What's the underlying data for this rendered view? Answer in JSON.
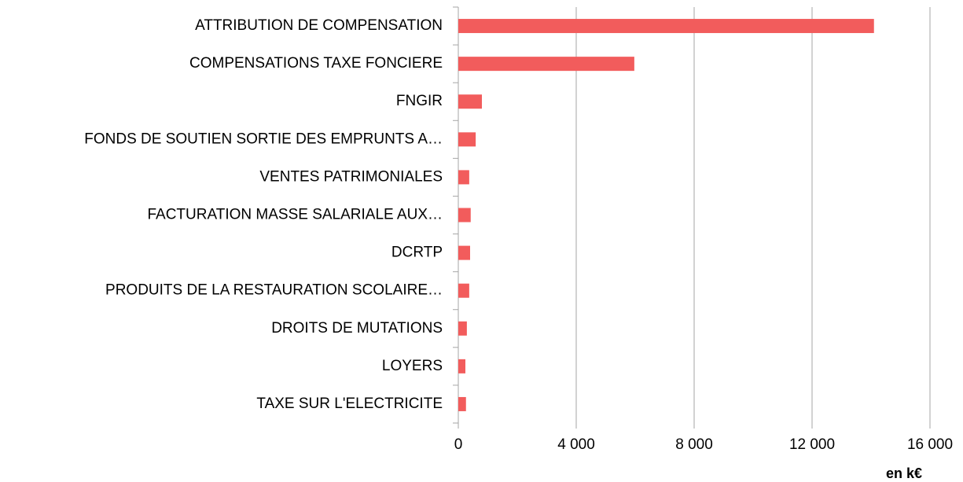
{
  "chart_data": {
    "type": "hbar",
    "categories": [
      "ATTRIBUTION DE COMPENSATION",
      "COMPENSATIONS TAXE FONCIERE",
      "FNGIR",
      "FONDS DE SOUTIEN SORTIE DES EMPRUNTS A…",
      "VENTES PATRIMONIALES",
      "FACTURATION MASSE SALARIALE AUX…",
      "DCRTP",
      "PRODUITS DE LA RESTAURATION SCOLAIRE…",
      "DROITS DE MUTATIONS",
      "LOYERS",
      "TAXE SUR L'ELECTRICITE"
    ],
    "values": [
      14100,
      5970,
      800,
      590,
      370,
      420,
      400,
      370,
      290,
      240,
      260
    ],
    "color": "#f25c5c",
    "xlim": [
      0,
      16000
    ],
    "xticks": [
      0,
      {
        "value": 4000,
        "label": "4 000"
      },
      {
        "value": 8000,
        "label": "8 000"
      },
      {
        "value": 12000,
        "label": "12 000"
      },
      {
        "value": 16000,
        "label": "16 000"
      }
    ],
    "x_label": "en k€",
    "grid": true
  }
}
